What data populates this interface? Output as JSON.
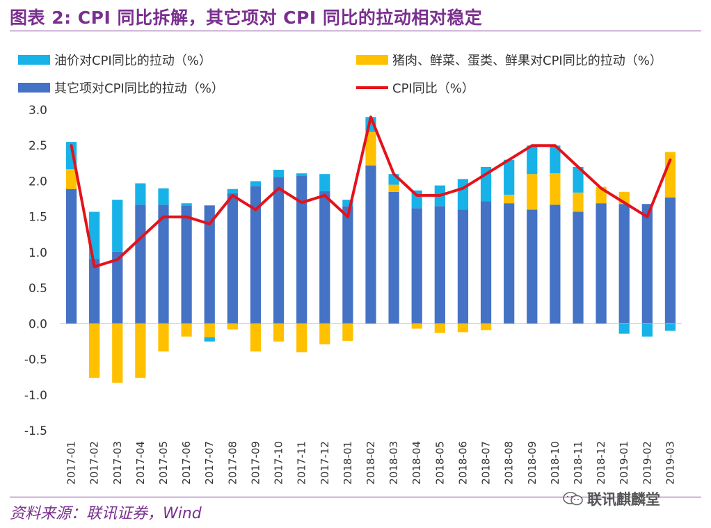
{
  "header": {
    "title": "图表 2: CPI 同比拆解，其它项对 CPI 同比的拉动相对稳定"
  },
  "chart_data": {
    "type": "bar",
    "stacked": true,
    "categories": [
      "2017-01",
      "2017-02",
      "2017-03",
      "2017-04",
      "2017-05",
      "2017-06",
      "2017-07",
      "2017-08",
      "2017-09",
      "2017-10",
      "2017-11",
      "2017-12",
      "2018-01",
      "2018-02",
      "2018-03",
      "2018-04",
      "2018-05",
      "2018-06",
      "2018-07",
      "2018-08",
      "2018-09",
      "2018-10",
      "2018-11",
      "2018-12",
      "2019-01",
      "2019-02",
      "2019-03"
    ],
    "series": [
      {
        "name": "其它项对CPI同比的拉动（%）",
        "type": "bar",
        "color": "#4472c4",
        "values": [
          1.89,
          0.91,
          1.01,
          1.67,
          1.67,
          1.66,
          1.66,
          1.83,
          1.93,
          2.06,
          2.08,
          1.86,
          1.65,
          2.22,
          1.85,
          1.62,
          1.65,
          1.6,
          1.72,
          1.69,
          1.6,
          1.67,
          1.57,
          1.69,
          1.68,
          1.68,
          1.77
        ]
      },
      {
        "name": "猪肉、鲜菜、蛋类、鲜果对CPI同比的拉动（%）",
        "type": "bar",
        "color": "#ffc000",
        "values": [
          0.28,
          -0.76,
          -0.83,
          -0.76,
          -0.39,
          -0.18,
          -0.19,
          -0.08,
          -0.39,
          -0.25,
          -0.4,
          -0.29,
          -0.24,
          0.47,
          0.1,
          -0.07,
          -0.13,
          -0.12,
          -0.09,
          0.12,
          0.5,
          0.44,
          0.27,
          0.23,
          0.17,
          0.0,
          0.64
        ]
      },
      {
        "name": "油价对CPI同比的拉动（%）",
        "type": "bar",
        "color": "#17b2e8",
        "values": [
          0.38,
          0.66,
          0.73,
          0.3,
          0.23,
          0.03,
          -0.06,
          0.06,
          0.07,
          0.1,
          0.03,
          0.24,
          0.09,
          0.21,
          0.15,
          0.25,
          0.29,
          0.43,
          0.48,
          0.49,
          0.4,
          0.39,
          0.36,
          0.0,
          -0.14,
          -0.18,
          -0.1
        ]
      },
      {
        "name": "CPI同比（%）",
        "type": "line",
        "color": "#e4121b",
        "values": [
          2.5,
          0.8,
          0.9,
          1.2,
          1.5,
          1.5,
          1.4,
          1.8,
          1.6,
          1.9,
          1.7,
          1.8,
          1.5,
          2.9,
          2.1,
          1.8,
          1.8,
          1.9,
          2.1,
          2.3,
          2.5,
          2.5,
          2.2,
          1.9,
          1.7,
          1.5,
          2.3
        ]
      }
    ],
    "legend_order": [
      2,
      1,
      0,
      3
    ],
    "ylim": [
      -1.5,
      3.0
    ],
    "yticks": [
      "3.0",
      "2.5",
      "2.0",
      "1.5",
      "1.0",
      "0.5",
      "0.0",
      "-0.5",
      "-1.0",
      "-1.5"
    ],
    "legend_position": "top",
    "grid": false
  },
  "footer": {
    "source": "资料来源：联讯证券，Wind",
    "watermark": "联讯麒麟堂",
    "watermark_icon": "wechat-icon"
  }
}
